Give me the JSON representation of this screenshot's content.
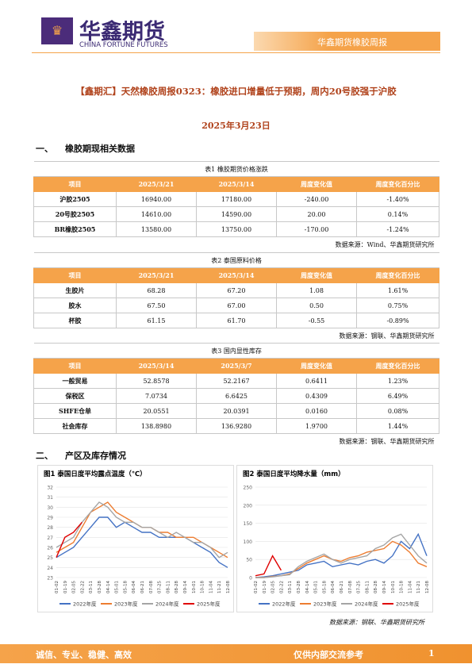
{
  "header": {
    "brand": "华鑫期货",
    "brand_en": "CHINA FORTUNE FUTURES",
    "report": "华鑫期货橡胶周报"
  },
  "title": "【鑫期汇】天然橡胶周报0323：橡胶进口增量低于预期，周内20号胶强于沪胶",
  "date": "2025年3月23日",
  "sections": [
    {
      "num": "一、",
      "text": "橡胶期现相关数据"
    },
    {
      "num": "二、",
      "text": "产区及库存情况"
    }
  ],
  "tables": [
    {
      "caption": "表1 橡胶期货价格涨跌",
      "columns": [
        "项目",
        "2025/3/21",
        "2025/3/14",
        "周度变化值",
        "周度变化百分比"
      ],
      "rows": [
        [
          "沪胶2505",
          "16940.00",
          "17180.00",
          "-240.00",
          "-1.40%"
        ],
        [
          "20号胶2505",
          "14610.00",
          "14590.00",
          "20.00",
          "0.14%"
        ],
        [
          "BR橡胶2505",
          "13580.00",
          "13750.00",
          "-170.00",
          "-1.24%"
        ]
      ],
      "source": "数据来源：Wind、华鑫期货研究所"
    },
    {
      "caption": "表2 泰国原料价格",
      "columns": [
        "项目",
        "2025/3/21",
        "2025/3/14",
        "周度变化值",
        "周度变化百分比"
      ],
      "rows": [
        [
          "生胶片",
          "68.28",
          "67.20",
          "1.08",
          "1.61%"
        ],
        [
          "胶水",
          "67.50",
          "67.00",
          "0.50",
          "0.75%"
        ],
        [
          "杯胶",
          "61.15",
          "61.70",
          "-0.55",
          "-0.89%"
        ]
      ],
      "source": "数据来源：钢联、华鑫期货研究所"
    },
    {
      "caption": "表3 国内显性库存",
      "columns": [
        "项目",
        "2025/3/14",
        "2025/3/7",
        "周度变化值",
        "周度变化百分比"
      ],
      "rows": [
        [
          "一般贸易",
          "52.8578",
          "52.2167",
          "0.6411",
          "1.23%"
        ],
        [
          "保税区",
          "7.0734",
          "6.6425",
          "0.4309",
          "6.49%"
        ],
        [
          "SHFE仓单",
          "20.0551",
          "20.0391",
          "0.0160",
          "0.08%"
        ],
        [
          "社会库存",
          "138.8980",
          "136.9280",
          "1.9700",
          "1.44%"
        ]
      ],
      "source": "数据来源：钢联、华鑫期货研究所"
    }
  ],
  "chart_data": [
    {
      "type": "line",
      "title": "图1 泰国日度平均露点温度（℃）",
      "categories": [
        "01-02",
        "01-19",
        "02-05",
        "02-22",
        "03-11",
        "03-28",
        "04-14",
        "05-01",
        "05-18",
        "06-04",
        "06-21",
        "07-08",
        "07-25",
        "08-11",
        "08-28",
        "09-14",
        "10-01",
        "10-18",
        "11-04",
        "11-21",
        "12-08"
      ],
      "ylim": [
        23,
        32
      ],
      "yticks": [
        23,
        24,
        25,
        26,
        27,
        28,
        29,
        30,
        31,
        32
      ],
      "series": [
        {
          "name": "2022年度",
          "color": "#4472c4",
          "values": [
            25,
            25.5,
            26,
            27,
            28,
            29,
            29,
            28,
            28.5,
            28,
            27.5,
            27.5,
            27,
            27,
            27,
            27,
            26.5,
            26,
            25.5,
            24.5,
            24
          ]
        },
        {
          "name": "2023年度",
          "color": "#ed7d31",
          "values": [
            25.5,
            26,
            26.5,
            28,
            29.5,
            30,
            30.5,
            29.5,
            29,
            28.5,
            28,
            28,
            27.5,
            27.5,
            27,
            27,
            27,
            26.5,
            26,
            25.5,
            25
          ]
        },
        {
          "name": "2024年度",
          "color": "#a5a5a5",
          "values": [
            26,
            26.5,
            27,
            28.5,
            29.5,
            30.5,
            30,
            29,
            28.5,
            28.5,
            28,
            28,
            27.5,
            27,
            27.5,
            27,
            26.5,
            26.5,
            26,
            25,
            25.5
          ]
        },
        {
          "name": "2025年度",
          "color": "#e00000",
          "values": [
            25,
            27,
            27.5,
            28.5,
            null,
            null,
            null,
            null,
            null,
            null,
            null,
            null,
            null,
            null,
            null,
            null,
            null,
            null,
            null,
            null,
            null
          ]
        }
      ]
    },
    {
      "type": "line",
      "title": "图2 泰国日度平均降水量（mm）",
      "categories": [
        "01-02",
        "01-19",
        "02-05",
        "02-22",
        "03-11",
        "03-28",
        "04-14",
        "05-01",
        "05-18",
        "06-04",
        "06-21",
        "07-08",
        "07-25",
        "08-11",
        "08-28",
        "09-14",
        "10-01",
        "10-18",
        "11-04",
        "11-21",
        "12-08"
      ],
      "ylim": [
        0,
        250
      ],
      "yticks": [
        0,
        50,
        100,
        150,
        200,
        250
      ],
      "series": [
        {
          "name": "2022年度",
          "color": "#4472c4",
          "values": [
            0,
            2,
            5,
            10,
            15,
            20,
            35,
            40,
            45,
            30,
            35,
            40,
            35,
            45,
            50,
            40,
            60,
            100,
            80,
            120,
            60
          ]
        },
        {
          "name": "2023年度",
          "color": "#ed7d31",
          "values": [
            0,
            0,
            3,
            5,
            10,
            25,
            40,
            50,
            60,
            50,
            45,
            55,
            60,
            70,
            75,
            80,
            100,
            90,
            70,
            40,
            30
          ]
        },
        {
          "name": "2024年度",
          "color": "#a5a5a5",
          "values": [
            0,
            0,
            2,
            5,
            8,
            30,
            45,
            55,
            65,
            50,
            40,
            50,
            55,
            60,
            80,
            90,
            110,
            120,
            90,
            60,
            40
          ]
        },
        {
          "name": "2025年度",
          "color": "#e00000",
          "values": [
            5,
            10,
            60,
            20,
            null,
            null,
            null,
            null,
            null,
            null,
            null,
            null,
            null,
            null,
            null,
            null,
            null,
            null,
            null,
            null,
            null
          ]
        }
      ]
    }
  ],
  "chart_source": "数据来源：钢联、华鑫期货研究所",
  "footer": {
    "motto": "诚信、专业、稳健、高效",
    "notice": "仅供内部交流参考",
    "page": 1
  }
}
